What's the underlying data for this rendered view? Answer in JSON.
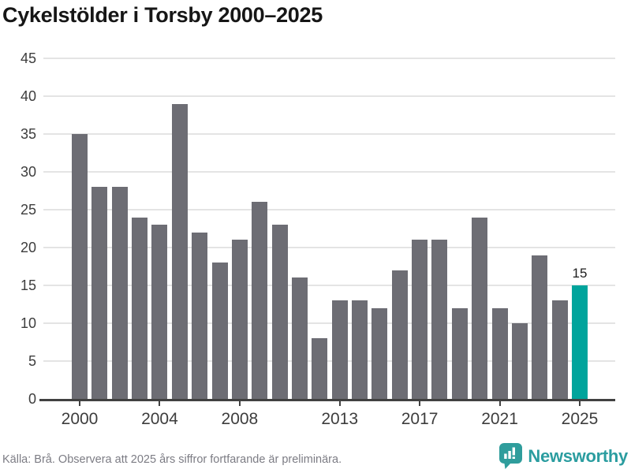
{
  "title": "Cykelstölder i Torsby 2000–2025",
  "chart_data": {
    "type": "bar",
    "title": "Cykelstölder i Torsby 2000–2025",
    "categories": [
      2000,
      2001,
      2002,
      2003,
      2004,
      2005,
      2006,
      2007,
      2008,
      2009,
      2010,
      2011,
      2012,
      2013,
      2014,
      2015,
      2016,
      2017,
      2018,
      2019,
      2020,
      2021,
      2022,
      2023,
      2024,
      2025
    ],
    "values": [
      35,
      28,
      28,
      24,
      23,
      39,
      22,
      18,
      21,
      26,
      23,
      16,
      8,
      13,
      13,
      12,
      17,
      21,
      21,
      12,
      24,
      12,
      10,
      19,
      13,
      15
    ],
    "xlabel": "",
    "ylabel": "",
    "ylim": [
      0,
      45
    ],
    "y_ticks": [
      0,
      5,
      10,
      15,
      20,
      25,
      30,
      35,
      40,
      45
    ],
    "x_tick_labels": [
      "2000",
      "2004",
      "2008",
      "2013",
      "2017",
      "2021",
      "2025"
    ],
    "grid": true,
    "legend": false,
    "highlight": {
      "year": 2025,
      "index": 25,
      "label": "15"
    }
  },
  "footer": {
    "source": "Källa: Brå. Observera att 2025 års siffror fortfarande är preliminära.",
    "brand": "Newsworthy"
  },
  "colors": {
    "bar": "#6d6d74",
    "highlight": "#00a49c",
    "gridline": "#e4e4e4",
    "axis": "#414141",
    "title": "#161616",
    "tick_label": "#3d3d3d",
    "value_label": "#1c1c1c",
    "footer_text": "#7c7c84",
    "brand": "#2b9da0"
  }
}
